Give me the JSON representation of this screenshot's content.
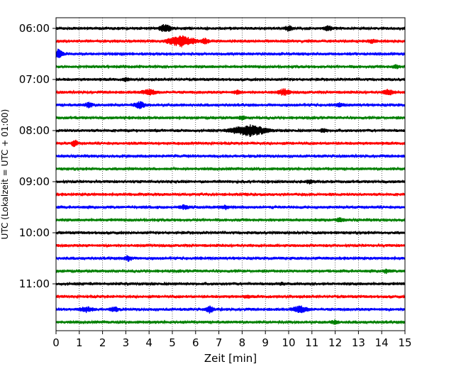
{
  "chart_data": {
    "type": "line",
    "title": "",
    "xlabel": "Zeit  [min]",
    "ylabel": "UTC (Lokalzeit = UTC + 01:00)",
    "xlim": [
      0,
      15
    ],
    "x_ticks": [
      0,
      1,
      2,
      3,
      4,
      5,
      6,
      7,
      8,
      9,
      10,
      11,
      12,
      13,
      14,
      15
    ],
    "x_tick_labels": [
      "0",
      "1",
      "2",
      "3",
      "4",
      "5",
      "6",
      "7",
      "8",
      "9",
      "10",
      "11",
      "12",
      "13",
      "14",
      "15"
    ],
    "y_tick_labels": [
      "06:00",
      "07:00",
      "08:00",
      "09:00",
      "10:00",
      "11:00"
    ],
    "grid": "vertical dotted",
    "trace_colors": [
      "#000000",
      "#ff0000",
      "#0000ff",
      "#007f00"
    ],
    "rows": [
      {
        "start": "06:00",
        "events": [
          [
            4.7,
            6,
            0.4
          ],
          [
            10.0,
            4,
            0.3
          ],
          [
            11.7,
            4,
            0.3
          ]
        ]
      },
      {
        "start": "06:15",
        "events": [
          [
            5.4,
            8,
            0.9
          ],
          [
            6.4,
            4,
            0.3
          ],
          [
            13.6,
            3,
            0.3
          ]
        ]
      },
      {
        "start": "06:30",
        "events": [
          [
            0.1,
            7,
            0.3
          ]
        ]
      },
      {
        "start": "06:45",
        "events": [
          [
            14.6,
            3,
            0.3
          ]
        ]
      },
      {
        "start": "07:00",
        "events": [
          [
            3.0,
            3,
            0.2
          ]
        ]
      },
      {
        "start": "07:15",
        "events": [
          [
            4.0,
            4,
            0.6
          ],
          [
            7.8,
            3,
            0.3
          ],
          [
            9.8,
            5,
            0.4
          ],
          [
            14.3,
            4,
            0.4
          ]
        ]
      },
      {
        "start": "07:30",
        "events": [
          [
            1.4,
            4,
            0.3
          ],
          [
            3.6,
            5,
            0.4
          ],
          [
            12.2,
            3,
            0.3
          ]
        ]
      },
      {
        "start": "07:45",
        "events": [
          [
            8.0,
            3,
            0.3
          ]
        ]
      },
      {
        "start": "08:00",
        "events": [
          [
            8.3,
            8,
            1.2
          ],
          [
            11.5,
            3,
            0.3
          ]
        ]
      },
      {
        "start": "08:15",
        "events": [
          [
            0.8,
            6,
            0.2
          ]
        ]
      },
      {
        "start": "08:30",
        "events": []
      },
      {
        "start": "08:45",
        "events": []
      },
      {
        "start": "09:00",
        "events": [
          [
            10.9,
            3,
            0.3
          ]
        ]
      },
      {
        "start": "09:15",
        "events": []
      },
      {
        "start": "09:30",
        "events": [
          [
            5.5,
            3,
            0.4
          ],
          [
            7.3,
            3,
            0.3
          ]
        ]
      },
      {
        "start": "09:45",
        "events": [
          [
            12.2,
            3,
            0.3
          ]
        ]
      },
      {
        "start": "10:00",
        "events": []
      },
      {
        "start": "10:15",
        "events": []
      },
      {
        "start": "10:30",
        "events": [
          [
            3.1,
            4,
            0.3
          ]
        ]
      },
      {
        "start": "10:45",
        "events": [
          [
            14.2,
            3,
            0.3
          ]
        ]
      },
      {
        "start": "11:00",
        "events": [
          [
            9.7,
            2,
            0.3
          ]
        ]
      },
      {
        "start": "11:15",
        "events": [
          [
            8.2,
            2,
            0.3
          ]
        ]
      },
      {
        "start": "11:30",
        "events": [
          [
            1.3,
            4,
            0.5
          ],
          [
            2.5,
            4,
            0.3
          ],
          [
            6.6,
            5,
            0.3
          ],
          [
            10.5,
            5,
            0.6
          ]
        ]
      },
      {
        "start": "11:45",
        "events": [
          [
            12.0,
            3,
            0.3
          ]
        ]
      }
    ]
  }
}
